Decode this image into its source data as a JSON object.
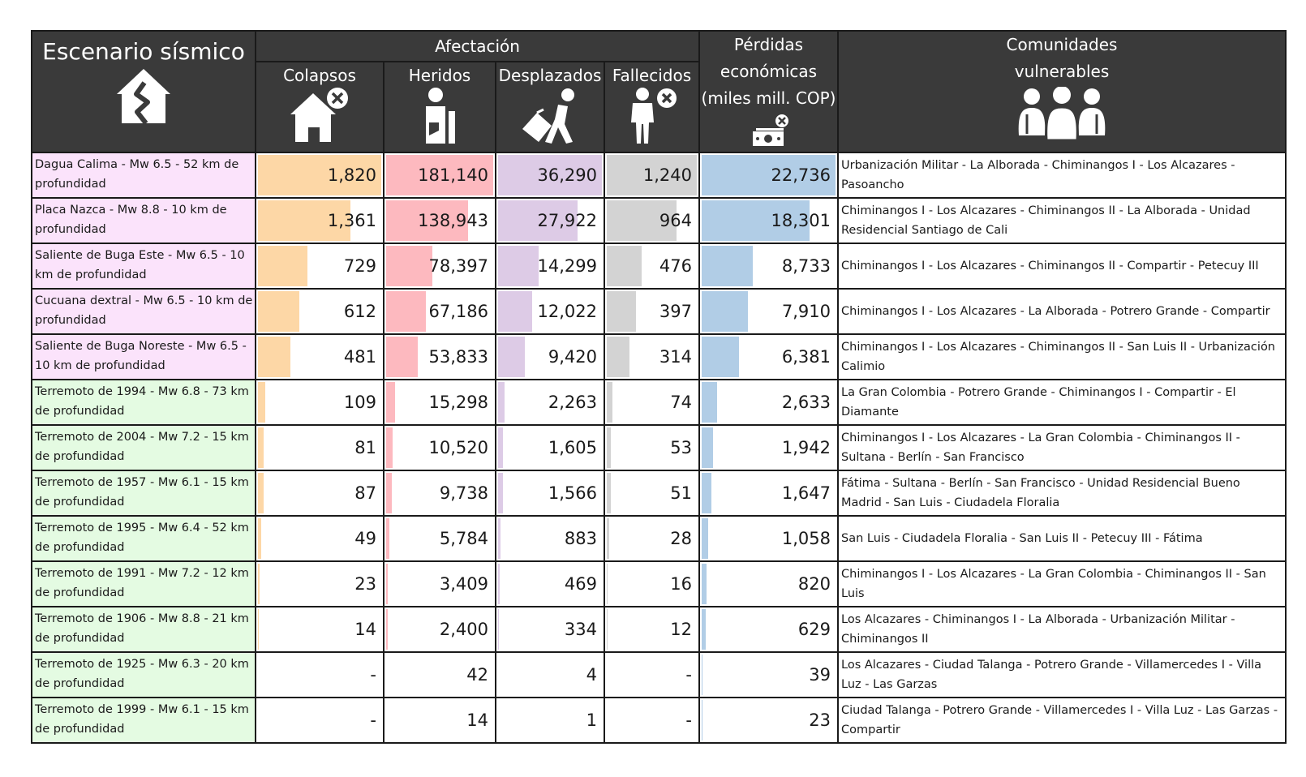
{
  "header": {
    "title": "Escenario sísmico",
    "group": "Afectación",
    "columns": [
      "Colapsos",
      "Heridos",
      "Desplazados",
      "Fallecidos"
    ],
    "losses_lines": [
      "Pérdidas",
      "económicas",
      "(miles mill. COP)"
    ],
    "communities_lines": [
      "Comunidades",
      "vulnerables"
    ]
  },
  "colors": {
    "colapsos": "#fdd7a6",
    "heridos": "#fdb9bf",
    "desplazados": "#ddcbe6",
    "fallecidos": "#d3d3d3",
    "perdidas": "#b1cde6",
    "highlight_pink": "#fbe3fb",
    "highlight_green": "#e4fbe2",
    "header_bg": "#3a3a3a"
  },
  "chart_data": {
    "type": "table",
    "max": {
      "colapsos": 1820,
      "heridos": 181140,
      "desplazados": 36290,
      "fallecidos": 1240,
      "perdidas": 22736
    },
    "rows": [
      {
        "scenario": "Dagua Calima - Mw 6.5 - 52 km de profundidad",
        "group": "pink",
        "colapsos": {
          "v": 1820,
          "t": "1,820"
        },
        "heridos": {
          "v": 181140,
          "t": "181,140"
        },
        "desplazados": {
          "v": 36290,
          "t": "36,290"
        },
        "fallecidos": {
          "v": 1240,
          "t": "1,240"
        },
        "perdidas": {
          "v": 22736,
          "t": "22,736"
        },
        "comunidades": "Urbanización Militar - La Alborada - Chiminangos I - Los Alcazares - Pasoancho"
      },
      {
        "scenario": "Placa Nazca - Mw 8.8 - 10 km de profundidad",
        "group": "pink",
        "colapsos": {
          "v": 1361,
          "t": "1,361"
        },
        "heridos": {
          "v": 138943,
          "t": "138,943"
        },
        "desplazados": {
          "v": 27922,
          "t": "27,922"
        },
        "fallecidos": {
          "v": 964,
          "t": "964"
        },
        "perdidas": {
          "v": 18301,
          "t": "18,301"
        },
        "comunidades": "Chiminangos I - Los Alcazares - Chiminangos II - La Alborada - Unidad Residencial Santiago de Cali"
      },
      {
        "scenario": "Saliente de Buga Este - Mw 6.5 - 10 km de profundidad",
        "group": "pink",
        "colapsos": {
          "v": 729,
          "t": "729"
        },
        "heridos": {
          "v": 78397,
          "t": "78,397"
        },
        "desplazados": {
          "v": 14299,
          "t": "14,299"
        },
        "fallecidos": {
          "v": 476,
          "t": "476"
        },
        "perdidas": {
          "v": 8733,
          "t": "8,733"
        },
        "comunidades": "Chiminangos I - Los Alcazares - Chiminangos II - Compartir - Petecuy III"
      },
      {
        "scenario": "Cucuana dextral - Mw 6.5 - 10 km de profundidad",
        "group": "pink",
        "colapsos": {
          "v": 612,
          "t": "612"
        },
        "heridos": {
          "v": 67186,
          "t": "67,186"
        },
        "desplazados": {
          "v": 12022,
          "t": "12,022"
        },
        "fallecidos": {
          "v": 397,
          "t": "397"
        },
        "perdidas": {
          "v": 7910,
          "t": "7,910"
        },
        "comunidades": "Chiminangos I - Los Alcazares - La Alborada - Potrero Grande - Compartir"
      },
      {
        "scenario": "Saliente de Buga Noreste - Mw 6.5 - 10 km de profundidad",
        "group": "pink",
        "colapsos": {
          "v": 481,
          "t": "481"
        },
        "heridos": {
          "v": 53833,
          "t": "53,833"
        },
        "desplazados": {
          "v": 9420,
          "t": "9,420"
        },
        "fallecidos": {
          "v": 314,
          "t": "314"
        },
        "perdidas": {
          "v": 6381,
          "t": "6,381"
        },
        "comunidades": "Chiminangos I - Los Alcazares - Chiminangos II - San Luis II - Urbanización Calimio"
      },
      {
        "scenario": "Terremoto de 1994 - Mw 6.8 - 73 km de profundidad",
        "group": "green",
        "colapsos": {
          "v": 109,
          "t": "109"
        },
        "heridos": {
          "v": 15298,
          "t": "15,298"
        },
        "desplazados": {
          "v": 2263,
          "t": "2,263"
        },
        "fallecidos": {
          "v": 74,
          "t": "74"
        },
        "perdidas": {
          "v": 2633,
          "t": "2,633"
        },
        "comunidades": "La Gran Colombia - Potrero Grande - Chiminangos I - Compartir - El Diamante"
      },
      {
        "scenario": "Terremoto de 2004 - Mw 7.2 - 15 km de profundidad",
        "group": "green",
        "colapsos": {
          "v": 81,
          "t": "81"
        },
        "heridos": {
          "v": 10520,
          "t": "10,520"
        },
        "desplazados": {
          "v": 1605,
          "t": "1,605"
        },
        "fallecidos": {
          "v": 53,
          "t": "53"
        },
        "perdidas": {
          "v": 1942,
          "t": "1,942"
        },
        "comunidades": "Chiminangos I - Los Alcazares - La Gran Colombia - Chiminangos II - Sultana - Berlín - San Francisco"
      },
      {
        "scenario": "Terremoto de 1957 - Mw 6.1 - 15 km de profundidad",
        "group": "green",
        "colapsos": {
          "v": 87,
          "t": "87"
        },
        "heridos": {
          "v": 9738,
          "t": "9,738"
        },
        "desplazados": {
          "v": 1566,
          "t": "1,566"
        },
        "fallecidos": {
          "v": 51,
          "t": "51"
        },
        "perdidas": {
          "v": 1647,
          "t": "1,647"
        },
        "comunidades": "Fátima - Sultana - Berlín - San Francisco - Unidad Residencial Bueno Madrid - San Luis - Ciudadela Floralia"
      },
      {
        "scenario": "Terremoto de 1995 - Mw 6.4 - 52 km de profundidad",
        "group": "green",
        "colapsos": {
          "v": 49,
          "t": "49"
        },
        "heridos": {
          "v": 5784,
          "t": "5,784"
        },
        "desplazados": {
          "v": 883,
          "t": "883"
        },
        "fallecidos": {
          "v": 28,
          "t": "28"
        },
        "perdidas": {
          "v": 1058,
          "t": "1,058"
        },
        "comunidades": "San Luis - Ciudadela Floralia - San Luis II - Petecuy III - Fátima"
      },
      {
        "scenario": "Terremoto de 1991 - Mw 7.2 - 12 km de profundidad",
        "group": "green",
        "colapsos": {
          "v": 23,
          "t": "23"
        },
        "heridos": {
          "v": 3409,
          "t": "3,409"
        },
        "desplazados": {
          "v": 469,
          "t": "469"
        },
        "fallecidos": {
          "v": 16,
          "t": "16"
        },
        "perdidas": {
          "v": 820,
          "t": "820"
        },
        "comunidades": "Chiminangos I - Los Alcazares - La Gran Colombia - Chiminangos II - San Luis"
      },
      {
        "scenario": "Terremoto de 1906 - Mw 8.8 - 21 km de profundidad",
        "group": "green",
        "colapsos": {
          "v": 14,
          "t": "14"
        },
        "heridos": {
          "v": 2400,
          "t": "2,400"
        },
        "desplazados": {
          "v": 334,
          "t": "334"
        },
        "fallecidos": {
          "v": 12,
          "t": "12"
        },
        "perdidas": {
          "v": 629,
          "t": "629"
        },
        "comunidades": "Los Alcazares - Chiminangos I - La Alborada - Urbanización Militar - Chiminangos II"
      },
      {
        "scenario": "Terremoto de 1925 - Mw 6.3 - 20 km de profundidad",
        "group": "green",
        "colapsos": {
          "v": 0,
          "t": "-"
        },
        "heridos": {
          "v": 42,
          "t": "42"
        },
        "desplazados": {
          "v": 4,
          "t": "4"
        },
        "fallecidos": {
          "v": 0,
          "t": "-"
        },
        "perdidas": {
          "v": 39,
          "t": "39"
        },
        "comunidades": "Los Alcazares - Ciudad Talanga - Potrero Grande - Villamercedes I - Villa Luz - Las Garzas"
      },
      {
        "scenario": "Terremoto de 1999 - Mw 6.1 - 15 km de profundidad",
        "group": "green",
        "colapsos": {
          "v": 0,
          "t": "-"
        },
        "heridos": {
          "v": 14,
          "t": "14"
        },
        "desplazados": {
          "v": 1,
          "t": "1"
        },
        "fallecidos": {
          "v": 0,
          "t": "-"
        },
        "perdidas": {
          "v": 23,
          "t": "23"
        },
        "comunidades": "Ciudad Talanga - Potrero Grande - Villamercedes I - Villa Luz - Las Garzas - Compartir"
      }
    ]
  },
  "icons": {
    "scenario": "house-crack-icon",
    "colapsos": "house-collapse-icon",
    "heridos": "injured-person-icon",
    "desplazados": "displaced-person-icon",
    "fallecidos": "deceased-person-icon",
    "perdidas": "money-loss-icon",
    "comunidades": "community-group-icon"
  }
}
